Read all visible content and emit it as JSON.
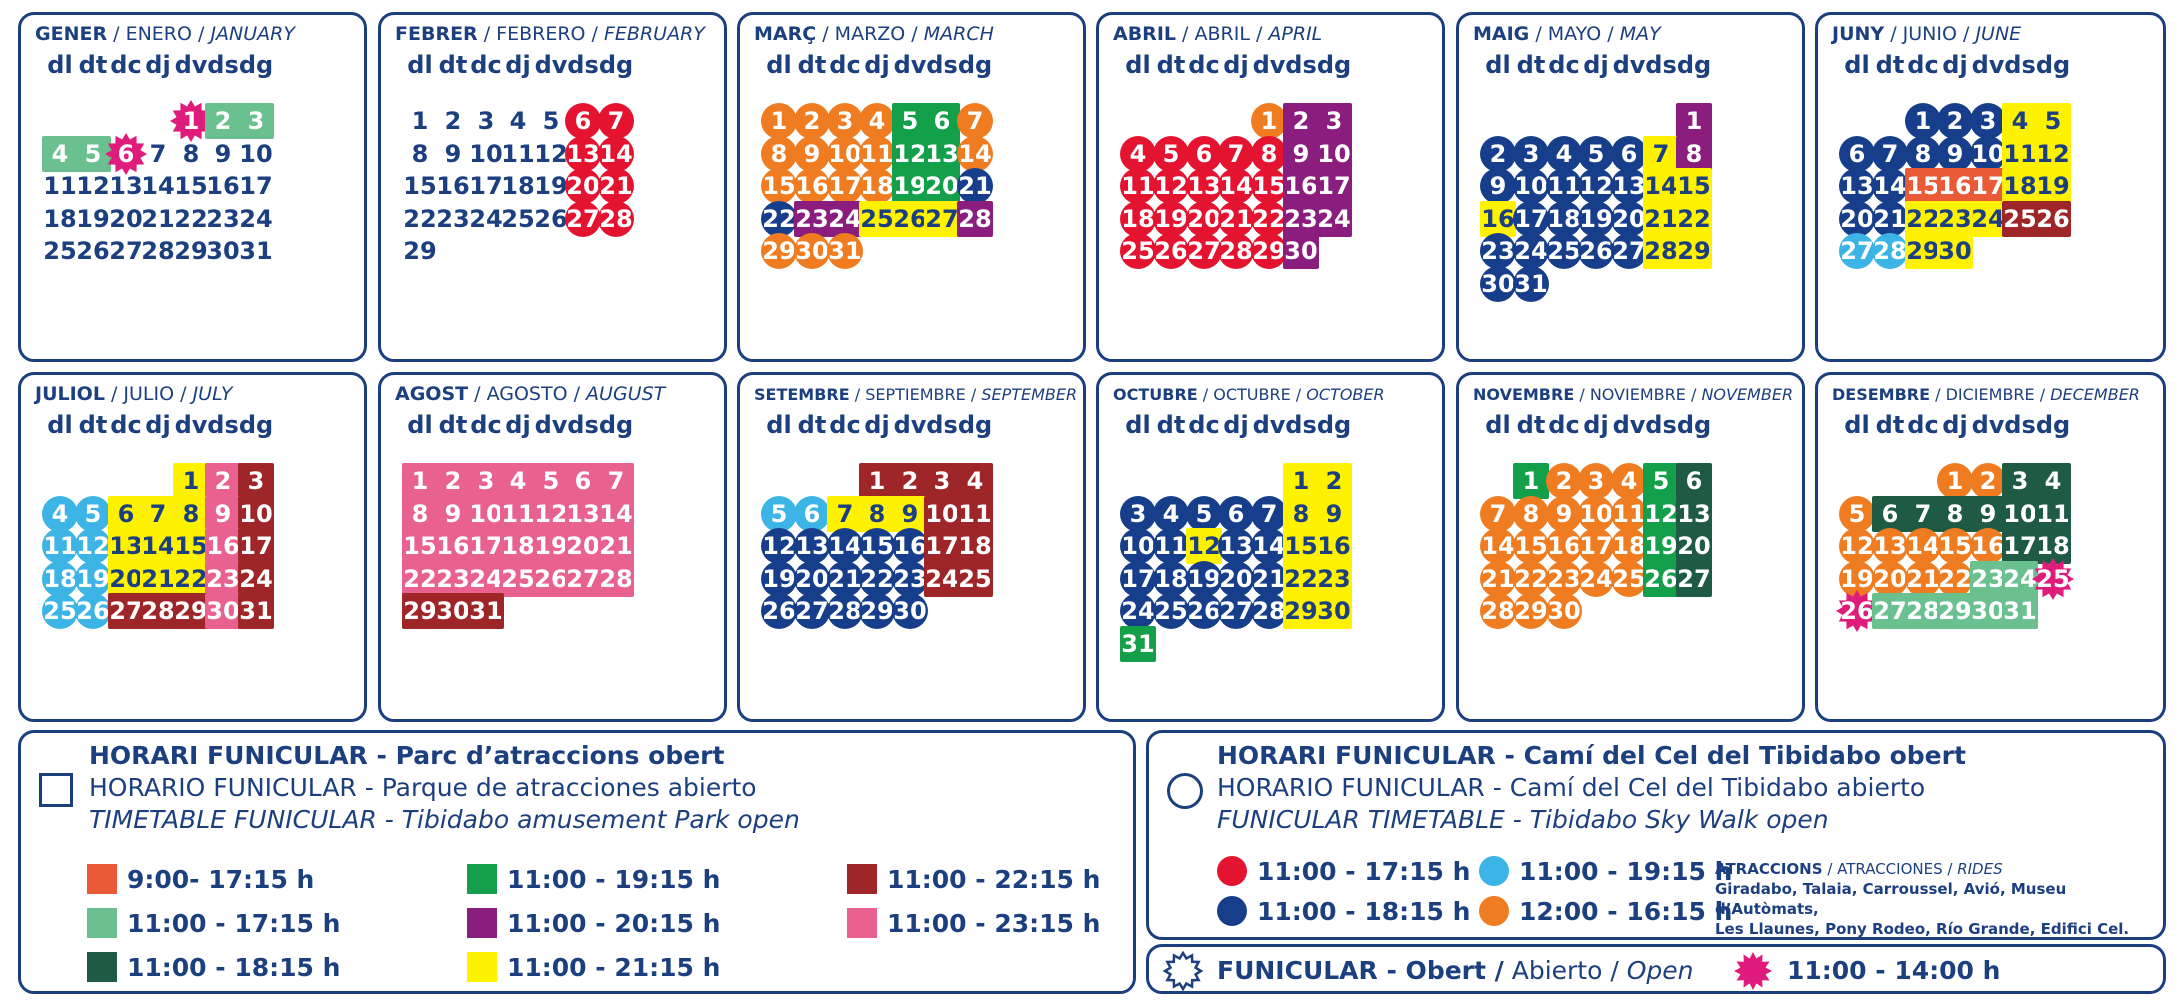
{
  "weekdays": [
    "dl",
    "dt",
    "dc",
    "dj",
    "dv",
    "ds",
    "dg"
  ],
  "colors": {
    "navy": "#1c3f7f",
    "bright_red": "#e41431",
    "sky_blue": "#3cb4e6",
    "dark_blue": "#173e8a",
    "orange": "#ef7c21",
    "red_orange": "#ea5a36",
    "green": "#14a04a",
    "purple": "#8a1d7d",
    "yellow": "#fff200",
    "light_green": "#6ac08f",
    "dark_green": "#1f5a45",
    "dark_red": "#9e2628",
    "pink": "#e9628f",
    "magenta": "#df1b7c"
  },
  "months": [
    {
      "ca": "GENER",
      "es": "ENERO",
      "en": "JANUARY",
      "offset": 4,
      "days": 31,
      "colors": {
        "1": "ST",
        "2": "LG",
        "3": "LG",
        "4": "LG",
        "5": "LG",
        "6": "ST"
      }
    },
    {
      "ca": "FEBRER",
      "es": "FEBRERO",
      "en": "FEBRUARY",
      "offset": 0,
      "days": 29,
      "colors": {
        "6": "BR",
        "7": "BR",
        "13": "BR",
        "14": "BR",
        "20": "BR",
        "21": "BR",
        "27": "BR",
        "28": "BR"
      }
    },
    {
      "ca": "MARÇ",
      "es": "MARZO",
      "en": "MARCH",
      "offset": 0,
      "days": 31,
      "colors": {
        "1": "OR",
        "2": "OR",
        "3": "OR",
        "4": "OR",
        "5": "GR",
        "6": "GR",
        "7": "OR",
        "8": "OR",
        "9": "OR",
        "10": "OR",
        "11": "OR",
        "12": "GR",
        "13": "GR",
        "14": "OR",
        "15": "OR",
        "16": "OR",
        "17": "OR",
        "18": "OR",
        "19": "GR",
        "20": "GR",
        "21": "DB",
        "22": "DB",
        "23": "PU",
        "24": "PU",
        "25": "YE",
        "26": "YE",
        "27": "YE",
        "28": "PU",
        "29": "OR",
        "30": "OR",
        "31": "OR"
      }
    },
    {
      "ca": "ABRIL",
      "es": "ABRIL",
      "en": "APRIL",
      "offset": 4,
      "days": 30,
      "colors": {
        "1": "OR",
        "2": "PU",
        "3": "PU",
        "4": "BR",
        "5": "BR",
        "6": "BR",
        "7": "BR",
        "8": "BR",
        "9": "PU",
        "10": "PU",
        "11": "BR",
        "12": "BR",
        "13": "BR",
        "14": "BR",
        "15": "BR",
        "16": "PU",
        "17": "PU",
        "18": "BR",
        "19": "BR",
        "20": "BR",
        "21": "BR",
        "22": "BR",
        "23": "PU",
        "24": "PU",
        "25": "BR",
        "26": "BR",
        "27": "BR",
        "28": "BR",
        "29": "BR",
        "30": "PU"
      }
    },
    {
      "ca": "MAIG",
      "es": "MAYO",
      "en": "MAY",
      "offset": 6,
      "days": 31,
      "colors": {
        "1": "PU",
        "2": "DB",
        "3": "DB",
        "4": "DB",
        "5": "DB",
        "6": "DB",
        "7": "YE",
        "8": "PU",
        "9": "DB",
        "10": "DB",
        "11": "DB",
        "12": "DB",
        "13": "DB",
        "14": "YE",
        "15": "YE",
        "16": "YE",
        "17": "DB",
        "18": "DB",
        "19": "DB",
        "20": "DB",
        "21": "YE",
        "22": "YE",
        "23": "DB",
        "24": "DB",
        "25": "DB",
        "26": "DB",
        "27": "DB",
        "28": "YE",
        "29": "YE",
        "30": "DB",
        "31": "DB"
      }
    },
    {
      "ca": "JUNY",
      "es": "JUNIO",
      "en": "JUNE",
      "offset": 2,
      "days": 30,
      "colors": {
        "1": "DB",
        "2": "DB",
        "3": "DB",
        "4": "YE",
        "5": "YE",
        "6": "DB",
        "7": "DB",
        "8": "DB",
        "9": "DB",
        "10": "DB",
        "11": "YE",
        "12": "YE",
        "13": "DB",
        "14": "DB",
        "15": "RO",
        "16": "RO",
        "17": "RO",
        "18": "YE",
        "19": "YE",
        "20": "DB",
        "21": "DB",
        "22": "YE",
        "23": "YE",
        "24": "YE",
        "25": "DR",
        "26": "DR",
        "27": "SB",
        "28": "SB",
        "29": "YE",
        "30": "YE"
      }
    },
    {
      "ca": "JULIOL",
      "es": "JULIO",
      "en": "JULY",
      "offset": 4,
      "days": 31,
      "colors": {
        "1": "YE",
        "2": "PK",
        "3": "DR",
        "4": "SB",
        "5": "SB",
        "6": "YE",
        "7": "YE",
        "8": "YE",
        "9": "PK",
        "10": "DR",
        "11": "SB",
        "12": "SB",
        "13": "YE",
        "14": "YE",
        "15": "YE",
        "16": "PK",
        "17": "DR",
        "18": "SB",
        "19": "SB",
        "20": "YE",
        "21": "YE",
        "22": "YE",
        "23": "PK",
        "24": "DR",
        "25": "SB",
        "26": "SB",
        "27": "DR",
        "28": "DR",
        "29": "DR",
        "30": "PK",
        "31": "DR"
      }
    },
    {
      "ca": "AGOST",
      "es": "AGOSTO",
      "en": "AUGUST",
      "offset": 0,
      "days": 31,
      "colors": {
        "1": "PK",
        "2": "PK",
        "3": "PK",
        "4": "PK",
        "5": "PK",
        "6": "PK",
        "7": "PK",
        "8": "PK",
        "9": "PK",
        "10": "PK",
        "11": "PK",
        "12": "PK",
        "13": "PK",
        "14": "PK",
        "15": "PK",
        "16": "PK",
        "17": "PK",
        "18": "PK",
        "19": "PK",
        "20": "PK",
        "21": "PK",
        "22": "PK",
        "23": "PK",
        "24": "PK",
        "25": "PK",
        "26": "PK",
        "27": "PK",
        "28": "PK",
        "29": "DR",
        "30": "DR",
        "31": "DR"
      }
    },
    {
      "ca": "SETEMBRE",
      "es": "SEPTIEMBRE",
      "en": "SEPTEMBER",
      "offset": 3,
      "days": 30,
      "small": true,
      "colors": {
        "1": "DR",
        "2": "DR",
        "3": "DR",
        "4": "DR",
        "5": "SB",
        "6": "SB",
        "7": "YE",
        "8": "YE",
        "9": "YE",
        "10": "DR",
        "11": "DR",
        "12": "DB",
        "13": "DB",
        "14": "DB",
        "15": "DB",
        "16": "DB",
        "17": "DR",
        "18": "DR",
        "19": "DB",
        "20": "DB",
        "21": "DB",
        "22": "DB",
        "23": "DB",
        "24": "DR",
        "25": "DR",
        "26": "DB",
        "27": "DB",
        "28": "DB",
        "29": "DB",
        "30": "DB"
      }
    },
    {
      "ca": "OCTUBRE",
      "es": "OCTUBRE",
      "en": "OCTOBER",
      "offset": 5,
      "days": 31,
      "small": true,
      "colors": {
        "1": "YE",
        "2": "YE",
        "3": "DB",
        "4": "DB",
        "5": "DB",
        "6": "DB",
        "7": "DB",
        "8": "YE",
        "9": "YE",
        "10": "DB",
        "11": "DB",
        "12": "YE",
        "13": "DB",
        "14": "DB",
        "15": "YE",
        "16": "YE",
        "17": "DB",
        "18": "DB",
        "19": "DB",
        "20": "DB",
        "21": "DB",
        "22": "YE",
        "23": "YE",
        "24": "DB",
        "25": "DB",
        "26": "DB",
        "27": "DB",
        "28": "DB",
        "29": "YE",
        "30": "YE",
        "31": "GR"
      }
    },
    {
      "ca": "NOVEMBRE",
      "es": "NOVIEMBRE",
      "en": "NOVEMBER",
      "offset": 1,
      "days": 30,
      "small": true,
      "colors": {
        "1": "GR",
        "2": "OR",
        "3": "OR",
        "4": "OR",
        "5": "GR",
        "6": "DG",
        "7": "OR",
        "8": "OR",
        "9": "OR",
        "10": "OR",
        "11": "OR",
        "12": "GR",
        "13": "DG",
        "14": "OR",
        "15": "OR",
        "16": "OR",
        "17": "OR",
        "18": "OR",
        "19": "GR",
        "20": "DG",
        "21": "OR",
        "22": "OR",
        "23": "OR",
        "24": "OR",
        "25": "OR",
        "26": "GR",
        "27": "DG",
        "28": "OR",
        "29": "OR",
        "30": "OR"
      }
    },
    {
      "ca": "DESEMBRE",
      "es": "DICIEMBRE",
      "en": "DECEMBER",
      "offset": 3,
      "days": 31,
      "small": true,
      "colors": {
        "1": "OR",
        "2": "OR",
        "3": "DG",
        "4": "DG",
        "5": "OR",
        "6": "DG",
        "7": "DG",
        "8": "DG",
        "9": "DG",
        "10": "DG",
        "11": "DG",
        "12": "OR",
        "13": "OR",
        "14": "OR",
        "15": "OR",
        "16": "OR",
        "17": "DG",
        "18": "DG",
        "19": "OR",
        "20": "OR",
        "21": "OR",
        "22": "OR",
        "23": "LG",
        "24": "LG",
        "25": "ST",
        "26": "ST",
        "27": "LG",
        "28": "LG",
        "29": "LG",
        "30": "LG",
        "31": "LG"
      }
    }
  ],
  "legend_park": {
    "line1_bold": "HORARI FUNICULAR",
    "line1_rest": " - Parc d’atraccions obert",
    "line2_bold": "HORARIO FUNICULAR",
    "line2_rest": " - Parque de atracciones abierto",
    "line3": "TIMETABLE FUNICULAR - Tibidabo amusement Park open",
    "items": [
      {
        "label": "9:00- 17:15 h",
        "color": "#ea5a36"
      },
      {
        "label": "11:00 - 17:15 h",
        "color": "#6ac08f"
      },
      {
        "label": "11:00 - 18:15 h",
        "color": "#1f5a45"
      },
      {
        "label": "11:00 - 19:15 h",
        "color": "#14a04a"
      },
      {
        "label": "11:00 - 20:15 h",
        "color": "#8a1d7d"
      },
      {
        "label": "11:00 - 21:15 h",
        "color": "#fff200"
      },
      {
        "label": "11:00 - 22:15 h",
        "color": "#9e2628"
      },
      {
        "label": "11:00 - 23:15 h",
        "color": "#e9628f"
      }
    ]
  },
  "legend_sky": {
    "line1_bold": "HORARI FUNICULAR",
    "line1_rest": " - Camí del Cel del Tibidabo obert",
    "line2_bold": "HORARIO FUNICULAR",
    "line2_rest": " - Camí del Cel del Tibidabo abierto",
    "line3": "FUNICULAR TIMETABLE - Tibidabo Sky Walk open",
    "items": [
      {
        "label": "11:00 - 17:15 h",
        "color": "#e41431"
      },
      {
        "label": "11:00 - 18:15 h",
        "color": "#173e8a"
      },
      {
        "label": "11:00 - 19:15 h",
        "color": "#3cb4e6"
      },
      {
        "label": "12:00 - 16:15 h",
        "color": "#ef7c21"
      }
    ],
    "rides_ca": "ATRACCIONS",
    "rides_es": "ATRACCIONES",
    "rides_en": "RIDES",
    "rides_line1": "Giradabo, Talaia, Carroussel, Avió, Museu d’Autòmats,",
    "rides_line2": "Les Llaunes, Pony Rodeo, Río Grande, Edifici Cel."
  },
  "legend_open": {
    "bold": "FUNICULAR - Obert /",
    "es": " Abierto /",
    "en": " Open",
    "star_label": "11:00 - 14:00 h",
    "star_color": "#df1b7c"
  }
}
